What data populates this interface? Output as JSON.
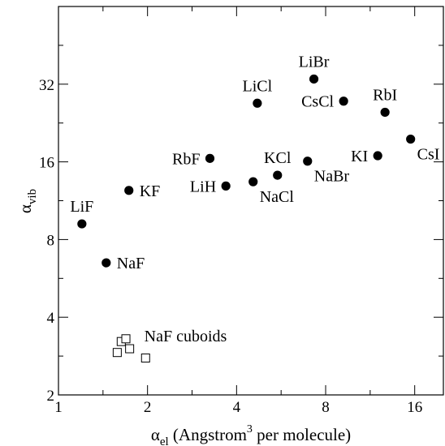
{
  "chart_data": {
    "type": "scatter",
    "title": "",
    "x_scale": "log",
    "y_scale": "log",
    "xlim": [
      1,
      20
    ],
    "ylim": [
      2,
      64
    ],
    "x_ticks": [
      {
        "value": 1,
        "label": "1"
      },
      {
        "value": 2,
        "label": "2"
      },
      {
        "value": 4,
        "label": "4"
      },
      {
        "value": 8,
        "label": "8"
      },
      {
        "value": 16,
        "label": "16"
      }
    ],
    "y_ticks": [
      {
        "value": 2,
        "label": "2"
      },
      {
        "value": 4,
        "label": "4"
      },
      {
        "value": 8,
        "label": "8"
      },
      {
        "value": 16,
        "label": "16"
      },
      {
        "value": 32,
        "label": "32"
      }
    ],
    "xlabel": {
      "base": "α",
      "sub": "el",
      "text_before_sup": " (Angstrom",
      "sup": "3",
      "text_after_sup": " per molecule)"
    },
    "ylabel": {
      "base": "α",
      "sub": "vib"
    },
    "grid": false,
    "series": [
      {
        "marker": "filled-circle",
        "color": "#000000",
        "points": [
          {
            "label": "LiF",
            "x": 1.2,
            "y": 9.2,
            "label_pos": "above"
          },
          {
            "label": "KF",
            "x": 1.73,
            "y": 12.4,
            "label_pos": "right"
          },
          {
            "label": "NaF",
            "x": 1.45,
            "y": 6.5,
            "label_pos": "right"
          },
          {
            "label": "RbF",
            "x": 3.25,
            "y": 16.5,
            "label_pos": "left"
          },
          {
            "label": "LiH",
            "x": 3.68,
            "y": 12.9,
            "label_pos": "left"
          },
          {
            "label": "NaCl",
            "x": 4.55,
            "y": 13.4,
            "label_pos": "below-right"
          },
          {
            "label": "LiCl",
            "x": 4.7,
            "y": 27.0,
            "label_pos": "above"
          },
          {
            "label": "KCl",
            "x": 5.5,
            "y": 14.2,
            "label_pos": "above"
          },
          {
            "label": "NaBr",
            "x": 6.95,
            "y": 16.1,
            "label_pos": "below-right"
          },
          {
            "label": "LiBr",
            "x": 7.3,
            "y": 33.5,
            "label_pos": "above"
          },
          {
            "label": "CsCl",
            "x": 9.2,
            "y": 27.5,
            "label_pos": "left"
          },
          {
            "label": "KI",
            "x": 12.0,
            "y": 16.9,
            "label_pos": "left"
          },
          {
            "label": "RbI",
            "x": 12.7,
            "y": 24.9,
            "label_pos": "above"
          },
          {
            "label": "CsI",
            "x": 15.5,
            "y": 19.6,
            "label_pos": "below-right"
          }
        ]
      },
      {
        "name": "NaF cuboids",
        "marker": "open-square",
        "color": "#000000",
        "points": [
          {
            "x": 1.58,
            "y": 2.92
          },
          {
            "x": 1.63,
            "y": 3.22
          },
          {
            "x": 1.69,
            "y": 3.3
          },
          {
            "x": 1.74,
            "y": 3.02
          },
          {
            "x": 1.97,
            "y": 2.78
          }
        ]
      }
    ],
    "annotations": [
      {
        "text": "NaF cuboids",
        "x": 1.95,
        "y": 3.22
      }
    ]
  }
}
